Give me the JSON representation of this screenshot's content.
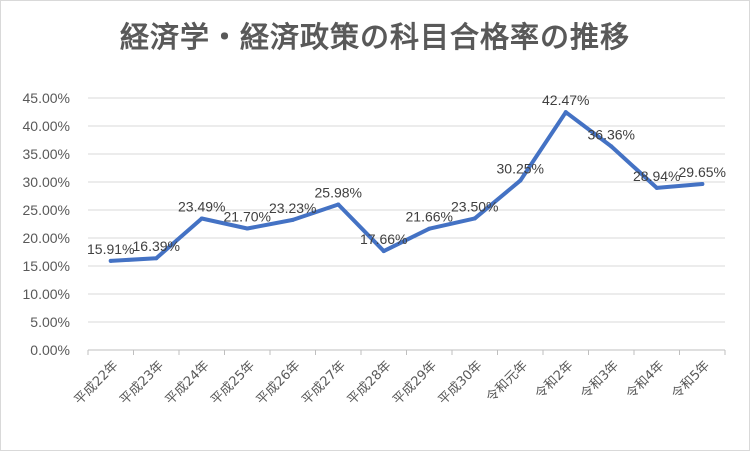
{
  "title": "経済学・経済政策の科目合格率の推移",
  "colors": {
    "line": "#4472C4",
    "grid": "#d9d9d9",
    "text": "#595959"
  },
  "chart_data": {
    "type": "line",
    "title": "経済学・経済政策の科目合格率の推移",
    "categories": [
      "平成22年",
      "平成23年",
      "平成24年",
      "平成25年",
      "平成26年",
      "平成27年",
      "平成28年",
      "平成29年",
      "平成30年",
      "令和元年",
      "令和2年",
      "令和3年",
      "令和4年",
      "令和5年"
    ],
    "series": [
      {
        "values": [
          15.91,
          16.39,
          23.49,
          21.7,
          23.23,
          25.98,
          17.66,
          21.66,
          23.5,
          30.25,
          42.47,
          36.36,
          28.94,
          29.65
        ],
        "labels": [
          "15.91%",
          "16.39%",
          "23.49%",
          "21.70%",
          "23.23%",
          "25.98%",
          "17.66%",
          "21.66%",
          "23.50%",
          "30.25%",
          "42.47%",
          "36.36%",
          "28.94%",
          "29.65%"
        ]
      }
    ],
    "ylim": [
      0,
      45
    ],
    "yticks": [
      0,
      5,
      10,
      15,
      20,
      25,
      30,
      35,
      40,
      45
    ],
    "ytick_labels": [
      "0.00%",
      "5.00%",
      "10.00%",
      "15.00%",
      "20.00%",
      "25.00%",
      "30.00%",
      "35.00%",
      "40.00%",
      "45.00%"
    ],
    "grid": true,
    "legend": "none"
  }
}
